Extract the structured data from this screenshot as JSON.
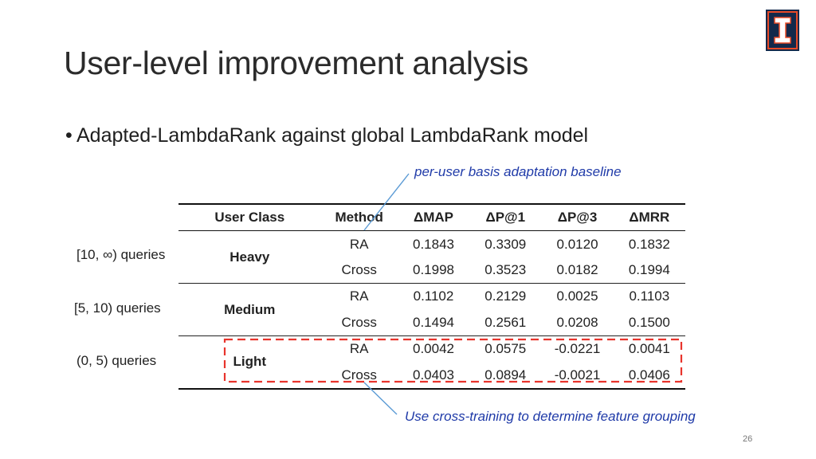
{
  "slide": {
    "title": "User-level improvement analysis",
    "bullet": "Adapted-LambdaRank against global LambdaRank model",
    "annotations": {
      "top": "per-user basis adaptation baseline",
      "bottom": "Use cross-training to determine feature grouping"
    },
    "query_ranges": [
      "[10, ∞) queries",
      "[5, 10) queries",
      "(0, 5) queries"
    ],
    "page_number": "26",
    "logo": {
      "icon": "university-of-illinois-block-i-logo",
      "colors": {
        "navy": "#13294b",
        "orange": "#e84a27"
      }
    },
    "highlight_color": "#e8342c",
    "arrow_color": "#5b9bd5"
  },
  "table": {
    "headers": {
      "class": "User Class",
      "method": "Method",
      "map": "ΔMAP",
      "p1": "ΔP@1",
      "p3": "ΔP@3",
      "mrr": "ΔMRR"
    },
    "groups": [
      {
        "class": "Heavy",
        "rows": [
          {
            "method": "RA",
            "map": "0.1843",
            "p1": "0.3309",
            "p3": "0.0120",
            "mrr": "0.1832"
          },
          {
            "method": "Cross",
            "map": "0.1998",
            "p1": "0.3523",
            "p3": "0.0182",
            "mrr": "0.1994"
          }
        ]
      },
      {
        "class": "Medium",
        "rows": [
          {
            "method": "RA",
            "map": "0.1102",
            "p1": "0.2129",
            "p3": "0.0025",
            "mrr": "0.1103"
          },
          {
            "method": "Cross",
            "map": "0.1494",
            "p1": "0.2561",
            "p3": "0.0208",
            "mrr": "0.1500"
          }
        ]
      },
      {
        "class": "Light",
        "rows": [
          {
            "method": "RA",
            "map": "0.0042",
            "p1": "0.0575",
            "p3": "-0.0221",
            "mrr": "0.0041"
          },
          {
            "method": "Cross",
            "map": "0.0403",
            "p1": "0.0894",
            "p3": "-0.0021",
            "mrr": "0.0406"
          }
        ]
      }
    ]
  }
}
